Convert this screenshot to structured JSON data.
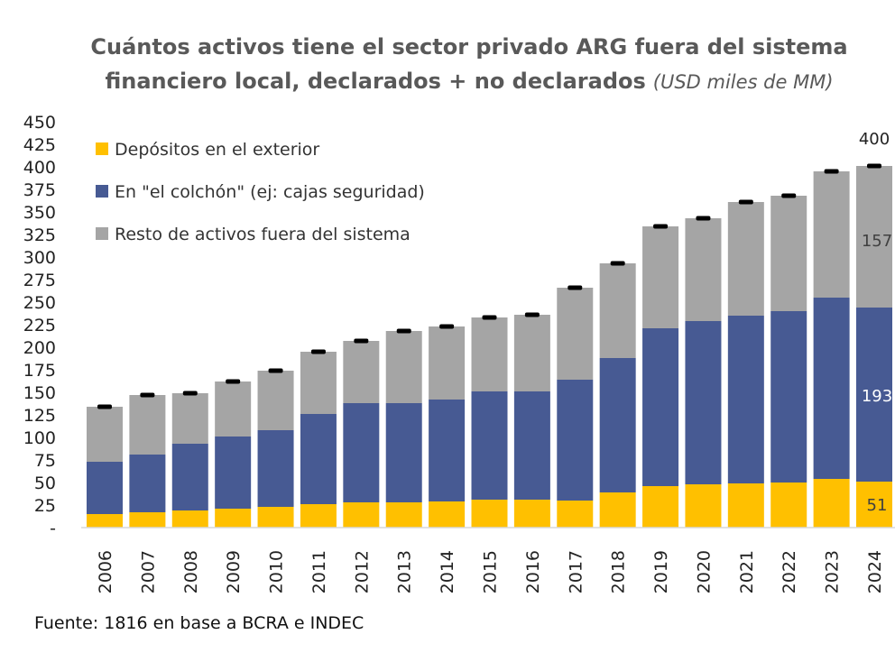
{
  "chart_data": {
    "type": "bar",
    "stacked": true,
    "title": "Cuántos activos tiene el sector privado ARG fuera del sistema financiero local, declarados + no declarados",
    "title_line1": "Cuántos activos tiene el sector privado ARG fuera del sistema",
    "title_line2": "financiero local, declarados + no declarados",
    "subtitle": "(USD miles de MM)",
    "xlabel": "",
    "ylabel": "",
    "ylim": [
      0,
      450
    ],
    "yticks": [
      0,
      25,
      50,
      75,
      100,
      125,
      150,
      175,
      200,
      225,
      250,
      275,
      300,
      325,
      350,
      375,
      400,
      425,
      450
    ],
    "ytick_labels": [
      "-",
      "25",
      "50",
      "75",
      "100",
      "125",
      "150",
      "175",
      "200",
      "225",
      "250",
      "275",
      "300",
      "325",
      "350",
      "375",
      "400",
      "425",
      "450"
    ],
    "grid": false,
    "legend_position": "top-left",
    "categories": [
      "2006",
      "2007",
      "2008",
      "2009",
      "2010",
      "2011",
      "2012",
      "2013",
      "2014",
      "2015",
      "2016",
      "2017",
      "2018",
      "2019",
      "2020",
      "2021",
      "2022",
      "2023",
      "2024"
    ],
    "series": [
      {
        "name": "Depósitos en el exterior",
        "color": "#FFC000",
        "values": [
          15,
          17,
          19,
          21,
          23,
          26,
          28,
          28,
          29,
          31,
          31,
          30,
          39,
          46,
          48,
          49,
          50,
          54,
          51
        ]
      },
      {
        "name": "En \"el colchón\" (ej: cajas seguridad)",
        "color": "#475A93",
        "values": [
          58,
          64,
          74,
          80,
          85,
          100,
          110,
          110,
          113,
          120,
          120,
          134,
          149,
          175,
          181,
          186,
          190,
          201,
          193
        ]
      },
      {
        "name": "Resto de activos fuera del sistema",
        "color": "#A5A5A5",
        "values": [
          61,
          66,
          56,
          61,
          66,
          69,
          69,
          80,
          81,
          82,
          85,
          102,
          105,
          113,
          114,
          126,
          128,
          140,
          157
        ]
      }
    ],
    "totals": [
      134,
      147,
      149,
      162,
      174,
      195,
      207,
      218,
      223,
      233,
      236,
      266,
      293,
      334,
      343,
      361,
      368,
      395,
      400
    ],
    "annotations": {
      "total_2024": "400",
      "gray_2024": "157",
      "blue_2024": "193",
      "yellow_2024": "51"
    },
    "source": "Fuente: 1816 en base a BCRA e INDEC"
  }
}
